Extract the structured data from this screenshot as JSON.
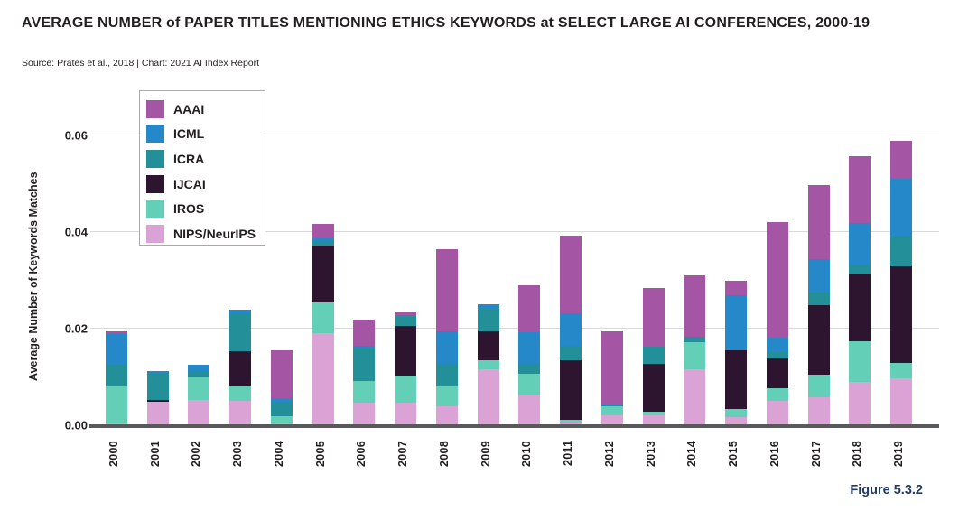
{
  "header": {
    "title": "AVERAGE NUMBER of PAPER TITLES MENTIONING ETHICS KEYWORDS at SELECT LARGE AI CONFERENCES, 2000-19",
    "source": "Source: Prates et al., 2018 | Chart: 2021 AI Index Report"
  },
  "figure_label": "Figure 5.3.2",
  "colors": {
    "axis_line": "#58595b",
    "gridline": "#d9d9d9",
    "text_dark": "#231f20",
    "figure_label_navy": "#223a5e",
    "legend_border": "#a7a9ac"
  },
  "chart_data": {
    "type": "bar",
    "stacked": true,
    "title": "Average number of paper titles mentioning ethics keywords at select large AI conferences, 2000-19",
    "xlabel": "",
    "ylabel": "Average Number of Keywords Matches",
    "ylim": [
      0,
      0.062
    ],
    "yticks": [
      0,
      0.02,
      0.04,
      0.06
    ],
    "ytick_labels": [
      "0.00",
      "0.02",
      "0.04",
      "0.06"
    ],
    "grid": true,
    "legend_position": "top-left",
    "categories": [
      "2000",
      "2001",
      "2002",
      "2003",
      "2004",
      "2005",
      "2006",
      "2007",
      "2008",
      "2009",
      "2010",
      "2011",
      "2012",
      "2013",
      "2014",
      "2015",
      "2016",
      "2017",
      "2018",
      "2019"
    ],
    "stack_order_bottom_to_top": [
      "NIPS/NeurIPS",
      "IROS",
      "IJCAI",
      "ICRA",
      "ICML",
      "AAAI"
    ],
    "series": [
      {
        "name": "AAAI",
        "color": "#a455a3",
        "values": [
          0.0006,
          0,
          0,
          0,
          0.0099,
          0.003,
          0.0054,
          0.0006,
          0.017,
          0,
          0.0097,
          0.0161,
          0.0152,
          0.0122,
          0.0127,
          0.0031,
          0.0239,
          0.0153,
          0.0138,
          0.0078
        ]
      },
      {
        "name": "ICML",
        "color": "#2589c9",
        "values": [
          0.0063,
          0.0004,
          0.0014,
          0.0008,
          0.0008,
          0.0006,
          0.0006,
          0,
          0.0066,
          0.0009,
          0.0065,
          0.0066,
          0.0004,
          0,
          0,
          0.0113,
          0.003,
          0.0069,
          0.0086,
          0.0119
        ]
      },
      {
        "name": "ICRA",
        "color": "#238f99",
        "values": [
          0.0045,
          0.0057,
          0.0011,
          0.0079,
          0.003,
          0.0009,
          0.0067,
          0.0024,
          0.0047,
          0.0047,
          0.0022,
          0.0031,
          0,
          0.0035,
          0.0011,
          0,
          0.0012,
          0.0027,
          0.0021,
          0.0063
        ]
      },
      {
        "name": "IJCAI",
        "color": "#2d1530",
        "values": [
          0,
          0.0004,
          0,
          0.007,
          0,
          0.0118,
          0,
          0.0102,
          0,
          0.006,
          0,
          0.0122,
          0,
          0.01,
          0,
          0.0123,
          0.0063,
          0.0143,
          0.0139,
          0.02
        ]
      },
      {
        "name": "IROS",
        "color": "#62cfb6",
        "values": [
          0.0078,
          0,
          0.0049,
          0.0032,
          0.0015,
          0.0063,
          0.0044,
          0.0057,
          0.0041,
          0.0019,
          0.0044,
          0.0006,
          0.0019,
          0.0008,
          0.0057,
          0.0017,
          0.0025,
          0.0047,
          0.0084,
          0.0031
        ]
      },
      {
        "name": "NIPS/NeurIPS",
        "color": "#dba2d6",
        "values": [
          0.0003,
          0.0048,
          0.0052,
          0.0051,
          0.0004,
          0.0191,
          0.0047,
          0.0046,
          0.004,
          0.0116,
          0.0062,
          0.0006,
          0.002,
          0.002,
          0.0115,
          0.0016,
          0.0051,
          0.0058,
          0.0089,
          0.0098
        ]
      }
    ]
  }
}
